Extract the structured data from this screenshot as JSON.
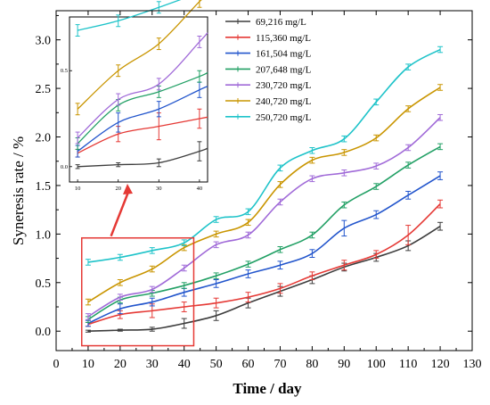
{
  "chart_data": {
    "type": "line",
    "xlabel": "Time / day",
    "ylabel": "Syneresis rate / %",
    "xlim": [
      0,
      130
    ],
    "ylim": [
      -0.2,
      3.3
    ],
    "xticks": [
      0,
      10,
      20,
      30,
      40,
      50,
      60,
      70,
      80,
      90,
      100,
      110,
      120,
      130
    ],
    "yticks": [
      0.0,
      0.5,
      1.0,
      1.5,
      2.0,
      2.5,
      3.0
    ],
    "x": [
      10,
      20,
      30,
      40,
      50,
      60,
      70,
      80,
      90,
      100,
      110,
      120
    ],
    "legend_position": "top-right",
    "series": [
      {
        "name": "69,216 mg/L",
        "color": "#3d3d3d",
        "values": [
          0.0,
          0.01,
          0.02,
          0.08,
          0.16,
          0.29,
          0.41,
          0.53,
          0.66,
          0.76,
          0.88,
          1.08
        ],
        "errors": [
          0.01,
          0.01,
          0.02,
          0.05,
          0.05,
          0.05,
          0.05,
          0.04,
          0.04,
          0.04,
          0.05,
          0.04
        ]
      },
      {
        "name": "115,360 mg/L",
        "color": "#e53935",
        "values": [
          0.07,
          0.17,
          0.21,
          0.25,
          0.29,
          0.35,
          0.44,
          0.57,
          0.68,
          0.79,
          0.99,
          1.31
        ],
        "errors": [
          0.02,
          0.04,
          0.07,
          0.05,
          0.05,
          0.05,
          0.05,
          0.04,
          0.05,
          0.04,
          0.1,
          0.04
        ]
      },
      {
        "name": "161,504 mg/L",
        "color": "#2255cc",
        "values": [
          0.08,
          0.23,
          0.3,
          0.4,
          0.49,
          0.59,
          0.68,
          0.8,
          1.06,
          1.2,
          1.4,
          1.6
        ],
        "errors": [
          0.03,
          0.05,
          0.04,
          0.04,
          0.04,
          0.04,
          0.04,
          0.04,
          0.08,
          0.04,
          0.04,
          0.04
        ]
      },
      {
        "name": "207,648 mg/L",
        "color": "#22a065",
        "values": [
          0.12,
          0.32,
          0.39,
          0.47,
          0.57,
          0.69,
          0.84,
          0.99,
          1.3,
          1.49,
          1.71,
          1.9
        ],
        "errors": [
          0.03,
          0.03,
          0.03,
          0.03,
          0.03,
          0.03,
          0.03,
          0.03,
          0.03,
          0.03,
          0.03,
          0.03
        ]
      },
      {
        "name": "230,720 mg/L",
        "color": "#a06ad8",
        "values": [
          0.15,
          0.35,
          0.43,
          0.65,
          0.89,
          0.99,
          1.33,
          1.57,
          1.63,
          1.7,
          1.89,
          2.2
        ],
        "errors": [
          0.03,
          0.03,
          0.03,
          0.03,
          0.03,
          0.03,
          0.03,
          0.03,
          0.03,
          0.03,
          0.03,
          0.03
        ]
      },
      {
        "name": "240,720 mg/L",
        "color": "#c99500",
        "values": [
          0.3,
          0.5,
          0.64,
          0.86,
          1.0,
          1.12,
          1.51,
          1.76,
          1.84,
          1.99,
          2.29,
          2.51
        ],
        "errors": [
          0.03,
          0.03,
          0.03,
          0.03,
          0.03,
          0.03,
          0.03,
          0.03,
          0.03,
          0.03,
          0.03,
          0.03
        ]
      },
      {
        "name": "250,720 mg/L",
        "color": "#1ec3c9",
        "values": [
          0.71,
          0.76,
          0.83,
          0.91,
          1.15,
          1.23,
          1.68,
          1.86,
          1.98,
          2.36,
          2.72,
          2.9
        ],
        "errors": [
          0.03,
          0.03,
          0.03,
          0.03,
          0.03,
          0.03,
          0.03,
          0.03,
          0.03,
          0.03,
          0.03,
          0.03
        ]
      }
    ],
    "highlight_box": {
      "x_range": [
        8,
        43
      ],
      "y_range": [
        -0.15,
        0.96
      ],
      "color": "#e53935"
    },
    "inset": {
      "x": [
        10,
        20,
        30,
        40
      ],
      "xlim": [
        8,
        42
      ],
      "ylim": [
        -0.08,
        0.78
      ],
      "xticks": [
        10,
        20,
        30,
        40
      ],
      "yticks": [
        0.0,
        0.5
      ]
    }
  }
}
